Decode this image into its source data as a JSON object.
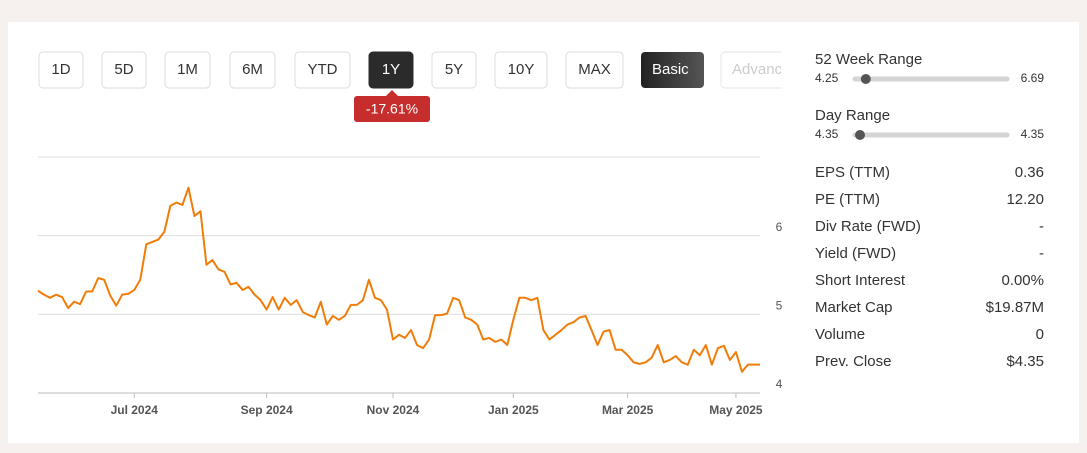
{
  "controls": {
    "periods": [
      {
        "label": "1D"
      },
      {
        "label": "5D"
      },
      {
        "label": "1M"
      },
      {
        "label": "6M"
      },
      {
        "label": "YTD"
      },
      {
        "label": "1Y",
        "active": true
      },
      {
        "label": "5Y"
      },
      {
        "label": "10Y"
      },
      {
        "label": "MAX"
      }
    ],
    "views": [
      {
        "label": "Basic",
        "active": true
      },
      {
        "label": "Advanced"
      }
    ]
  },
  "change_badge": "-17.61%",
  "chart_data": {
    "type": "line",
    "color": "#f07d0a",
    "categories": [
      null,
      null,
      null,
      null,
      null,
      null,
      null,
      null,
      null,
      null,
      null,
      null,
      null,
      null,
      null,
      null,
      "Jul 2024",
      null,
      null,
      null,
      null,
      null,
      null,
      null,
      null,
      null,
      null,
      null,
      null,
      null,
      null,
      null,
      null,
      null,
      null,
      null,
      null,
      null,
      "Sep 2024",
      null,
      null,
      null,
      null,
      null,
      null,
      null,
      null,
      null,
      null,
      null,
      null,
      null,
      null,
      null,
      null,
      null,
      null,
      null,
      null,
      "Nov 2024",
      null,
      null,
      null,
      null,
      null,
      null,
      null,
      null,
      null,
      null,
      null,
      null,
      null,
      null,
      null,
      null,
      null,
      null,
      null,
      "Jan 2025",
      null,
      null,
      null,
      null,
      null,
      null,
      null,
      null,
      null,
      null,
      null,
      null,
      null,
      null,
      null,
      null,
      null,
      null,
      "Mar 2025",
      null,
      null,
      null,
      null,
      null,
      null,
      null,
      null,
      null,
      null,
      null,
      null,
      null,
      null,
      null,
      null,
      null,
      "May 2025",
      null,
      null,
      null,
      null
    ],
    "values": [
      5.3,
      5.25,
      5.21,
      5.25,
      5.22,
      5.08,
      5.16,
      5.13,
      5.29,
      5.29,
      5.46,
      5.44,
      5.24,
      5.11,
      5.25,
      5.26,
      5.31,
      5.44,
      5.89,
      5.92,
      5.95,
      6.05,
      6.38,
      6.42,
      6.39,
      6.61,
      6.25,
      6.31,
      5.63,
      5.69,
      5.57,
      5.54,
      5.38,
      5.4,
      5.31,
      5.35,
      5.25,
      5.18,
      5.06,
      5.22,
      5.06,
      5.21,
      5.12,
      5.18,
      5.03,
      4.99,
      4.96,
      5.16,
      4.87,
      4.98,
      4.93,
      4.98,
      5.12,
      5.12,
      5.18,
      5.44,
      5.21,
      5.18,
      5.06,
      4.68,
      4.74,
      4.7,
      4.8,
      4.61,
      4.57,
      4.68,
      4.99,
      4.99,
      5.01,
      5.21,
      5.18,
      4.96,
      4.93,
      4.87,
      4.68,
      4.7,
      4.65,
      4.68,
      4.61,
      4.93,
      5.21,
      5.21,
      5.18,
      5.21,
      4.8,
      4.68,
      4.74,
      4.8,
      4.87,
      4.9,
      4.96,
      4.98,
      4.8,
      4.61,
      4.78,
      4.8,
      4.55,
      4.55,
      4.48,
      4.39,
      4.37,
      4.39,
      4.45,
      4.61,
      4.39,
      4.42,
      4.47,
      4.39,
      4.36,
      4.55,
      4.48,
      4.61,
      4.36,
      4.57,
      4.6,
      4.42,
      4.52,
      4.27,
      4.36,
      4.36,
      4.36
    ],
    "ylim": [
      4,
      7
    ],
    "yticks": [
      4,
      5,
      6
    ],
    "grid": true
  },
  "ranges": [
    {
      "label": "52 Week Range",
      "low": 4.25,
      "high": 6.69,
      "marker": 4.35
    },
    {
      "label": "Day Range",
      "low": 4.35,
      "high": 4.35,
      "marker": 4.35
    }
  ],
  "stats": [
    {
      "label": "EPS (TTM)",
      "value": "0.36"
    },
    {
      "label": "PE (TTM)",
      "value": "12.20"
    },
    {
      "label": "Div Rate (FWD)",
      "value": "-"
    },
    {
      "label": "Yield (FWD)",
      "value": "-"
    },
    {
      "label": "Short Interest",
      "value": "0.00%"
    },
    {
      "label": "Market Cap",
      "value": "$19.87M"
    },
    {
      "label": "Volume",
      "value": "0"
    },
    {
      "label": "Prev. Close",
      "value": "$4.35"
    }
  ]
}
